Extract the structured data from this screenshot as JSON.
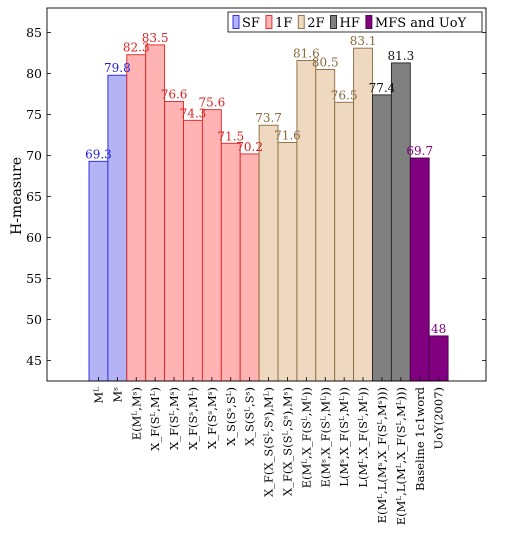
{
  "chart_data": {
    "type": "bar",
    "title": "",
    "xlabel": "",
    "ylabel": "H-measure",
    "ylim": [
      42.5,
      88
    ],
    "yticks": [
      45,
      50,
      55,
      60,
      65,
      70,
      75,
      80,
      85
    ],
    "grid": false,
    "legend_position": "top-right",
    "legend": [
      {
        "label": "SF",
        "fill": "#b3b3f5",
        "stroke": "#2222dd"
      },
      {
        "label": "1F",
        "fill": "#ffb3b3",
        "stroke": "#dd2222"
      },
      {
        "label": "2F",
        "fill": "#eed8c0",
        "stroke": "#8a6a3a"
      },
      {
        "label": "HF",
        "fill": "#808080",
        "stroke": "#222222"
      },
      {
        "label": "MFS and UoY",
        "fill": "#800080",
        "stroke": "#4a004a"
      }
    ],
    "categories": [
      "Mᴸ",
      "Mˢ",
      "E(Mᴸ,Mˢ)",
      "X_F(Sᴸ,Mᴸ)",
      "X_F(Sᴸ,Mˢ)",
      "X_F(Sˢ,Mᴸ)",
      "X_F(Sˢ,Mˢ)",
      "X_S(Sˢ,Sᴸ)",
      "X_S(Sᴸ,Sˢ)",
      "X_F(X_S(Sᴸ,Sˢ),Mᴸ)",
      "X_F(X_S(Sᴸ,Sˢ),Mˢ)",
      "E(Mᴸ,X_F(Sᴸ,Mᴸ))",
      "E(Mˢ,X_F(Sᴸ,Mᴸ))",
      "L(Mˢ,X_F(Sᴸ,Mᴸ))",
      "L(Mᴸ,X_F(Sᴸ,Mᴸ))",
      "E(Mᴸ,L(Mˢ,X_F(Sᴸ,Mˢ)))",
      "E(Mᴸ,L(Mᴸ,X_F(Sᴸ,Mᴸ)))",
      "Baseline 1c1word",
      "UoY(2007)"
    ],
    "values": [
      69.3,
      79.8,
      82.3,
      83.5,
      76.6,
      74.3,
      75.6,
      71.5,
      70.2,
      73.7,
      71.6,
      81.6,
      80.5,
      76.5,
      83.1,
      77.4,
      81.3,
      69.7,
      48
    ],
    "value_labels": [
      "69.3",
      "79.8",
      "82.3",
      "83.5",
      "76.6",
      "74.3",
      "75.6",
      "71.5",
      "70.2",
      "73.7",
      "71.6",
      "81.6",
      "80.5",
      "76.5",
      "83.1",
      "77.4",
      "81.3",
      "69.7",
      "48"
    ],
    "groups": [
      0,
      0,
      1,
      1,
      1,
      1,
      1,
      1,
      1,
      2,
      2,
      2,
      2,
      2,
      2,
      3,
      3,
      4,
      4
    ],
    "label_colors": [
      "#2222dd",
      "#dd2222",
      "#8a6a3a",
      "#111111",
      "#800080"
    ]
  }
}
